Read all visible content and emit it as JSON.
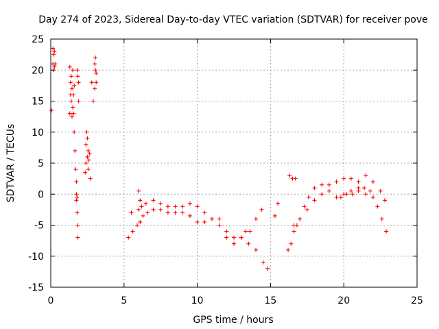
{
  "chart_data": {
    "type": "scatter",
    "title": "Day 274 of 2023, Sidereal Day-to-day VTEC variation (SDTVAR) for receiver pove",
    "xlabel": "GPS time / hours",
    "ylabel": "SDTVAR / TECUs",
    "xlim": [
      0,
      25
    ],
    "ylim": [
      -15,
      25
    ],
    "x_ticks": [
      "0",
      "5",
      "10",
      "15",
      "20",
      "25"
    ],
    "y_ticks": [
      "-15",
      "-10",
      "-5",
      "0",
      "5",
      "10",
      "15",
      "20",
      "25"
    ],
    "grid": true,
    "marker": "+",
    "color": "#ff0000",
    "series": [
      {
        "name": "SDTVAR",
        "x": [
          0.05,
          0.15,
          0.15,
          0.2,
          0.2,
          0.25,
          0.25,
          0.3,
          1.3,
          1.3,
          1.35,
          1.35,
          1.4,
          1.4,
          1.45,
          1.45,
          1.5,
          1.5,
          1.55,
          1.55,
          1.6,
          1.6,
          1.65,
          1.7,
          1.75,
          1.75,
          1.75,
          1.8,
          1.8,
          1.85,
          1.85,
          1.8,
          1.85,
          1.9,
          1.9,
          2.35,
          2.4,
          2.4,
          2.45,
          2.5,
          2.5,
          2.55,
          2.55,
          2.6,
          2.65,
          2.7,
          2.8,
          2.9,
          3.0,
          3.0,
          3.05,
          3.05,
          3.1,
          3.1,
          5.3,
          5.6,
          5.9,
          6.1,
          6.3,
          6.6,
          7.0,
          7.5,
          8.0,
          8.5,
          9.0,
          9.5,
          10.0,
          10.5,
          11.0,
          11.5,
          12.0,
          12.5,
          13.0,
          13.5,
          14.0,
          14.5,
          14.8,
          5.5,
          6.0,
          6.5,
          7.0,
          7.5,
          8.0,
          8.5,
          9.0,
          9.5,
          10.0,
          10.5,
          11.0,
          11.5,
          12.0,
          12.5,
          13.0,
          13.3,
          13.6,
          14.0,
          14.4,
          6.0,
          6.1,
          6.2,
          15.3,
          15.5,
          16.2,
          16.4,
          16.6,
          16.8,
          17.0,
          17.3,
          17.6,
          18.0,
          18.5,
          19.0,
          19.5,
          20.0,
          20.5,
          21.0,
          21.5,
          22.0,
          22.3,
          22.6,
          22.9,
          16.6,
          17.0,
          17.5,
          18.0,
          18.5,
          19.0,
          19.5,
          20.0,
          20.5,
          21.0,
          21.5,
          22.0,
          22.5,
          22.8,
          16.3,
          16.5,
          16.7,
          19.8,
          20.2,
          20.6,
          21.0,
          21.4,
          21.8
        ],
        "y": [
          13.5,
          23.5,
          21,
          22.5,
          20,
          23,
          20.5,
          21,
          13,
          20.5,
          16,
          18,
          15,
          19,
          12.5,
          17,
          14,
          20,
          13,
          16,
          10,
          17.5,
          7,
          4,
          2,
          0,
          -1,
          -0.5,
          -3,
          -5,
          -7,
          20,
          19,
          15,
          18,
          3.5,
          5,
          8,
          10,
          6,
          9,
          4,
          7,
          5.5,
          6.5,
          2.5,
          18,
          15,
          17,
          21,
          20,
          22,
          19.5,
          18,
          -7,
          -6,
          -5,
          -4.5,
          -3.5,
          -3,
          -2.5,
          -2.5,
          -3,
          -3,
          -2,
          -1.5,
          -2,
          -3,
          -4,
          -5,
          -7,
          -8,
          -7,
          -8,
          -9,
          -11,
          -12,
          -3,
          -2.5,
          -1.5,
          -1,
          -1.5,
          -2,
          -2,
          -3,
          -3.5,
          -4.5,
          -4.5,
          -4,
          -4,
          -6,
          -7,
          -7,
          -6,
          -6,
          -4,
          -2.5,
          0.5,
          -1,
          -2,
          -3.5,
          -1.5,
          -9,
          -8,
          -6,
          -5,
          -4,
          -2,
          -0.5,
          1,
          1.5,
          0.5,
          -0.5,
          0,
          0.5,
          1,
          0,
          -0.5,
          -2,
          -4,
          -6,
          -5,
          -4,
          -2.5,
          -1,
          0,
          1.5,
          2,
          2.5,
          2.5,
          2,
          3,
          2,
          0.5,
          -1,
          3,
          2.5,
          2.5,
          -0.5,
          0,
          0,
          0.5,
          1,
          0.5
        ]
      }
    ]
  }
}
